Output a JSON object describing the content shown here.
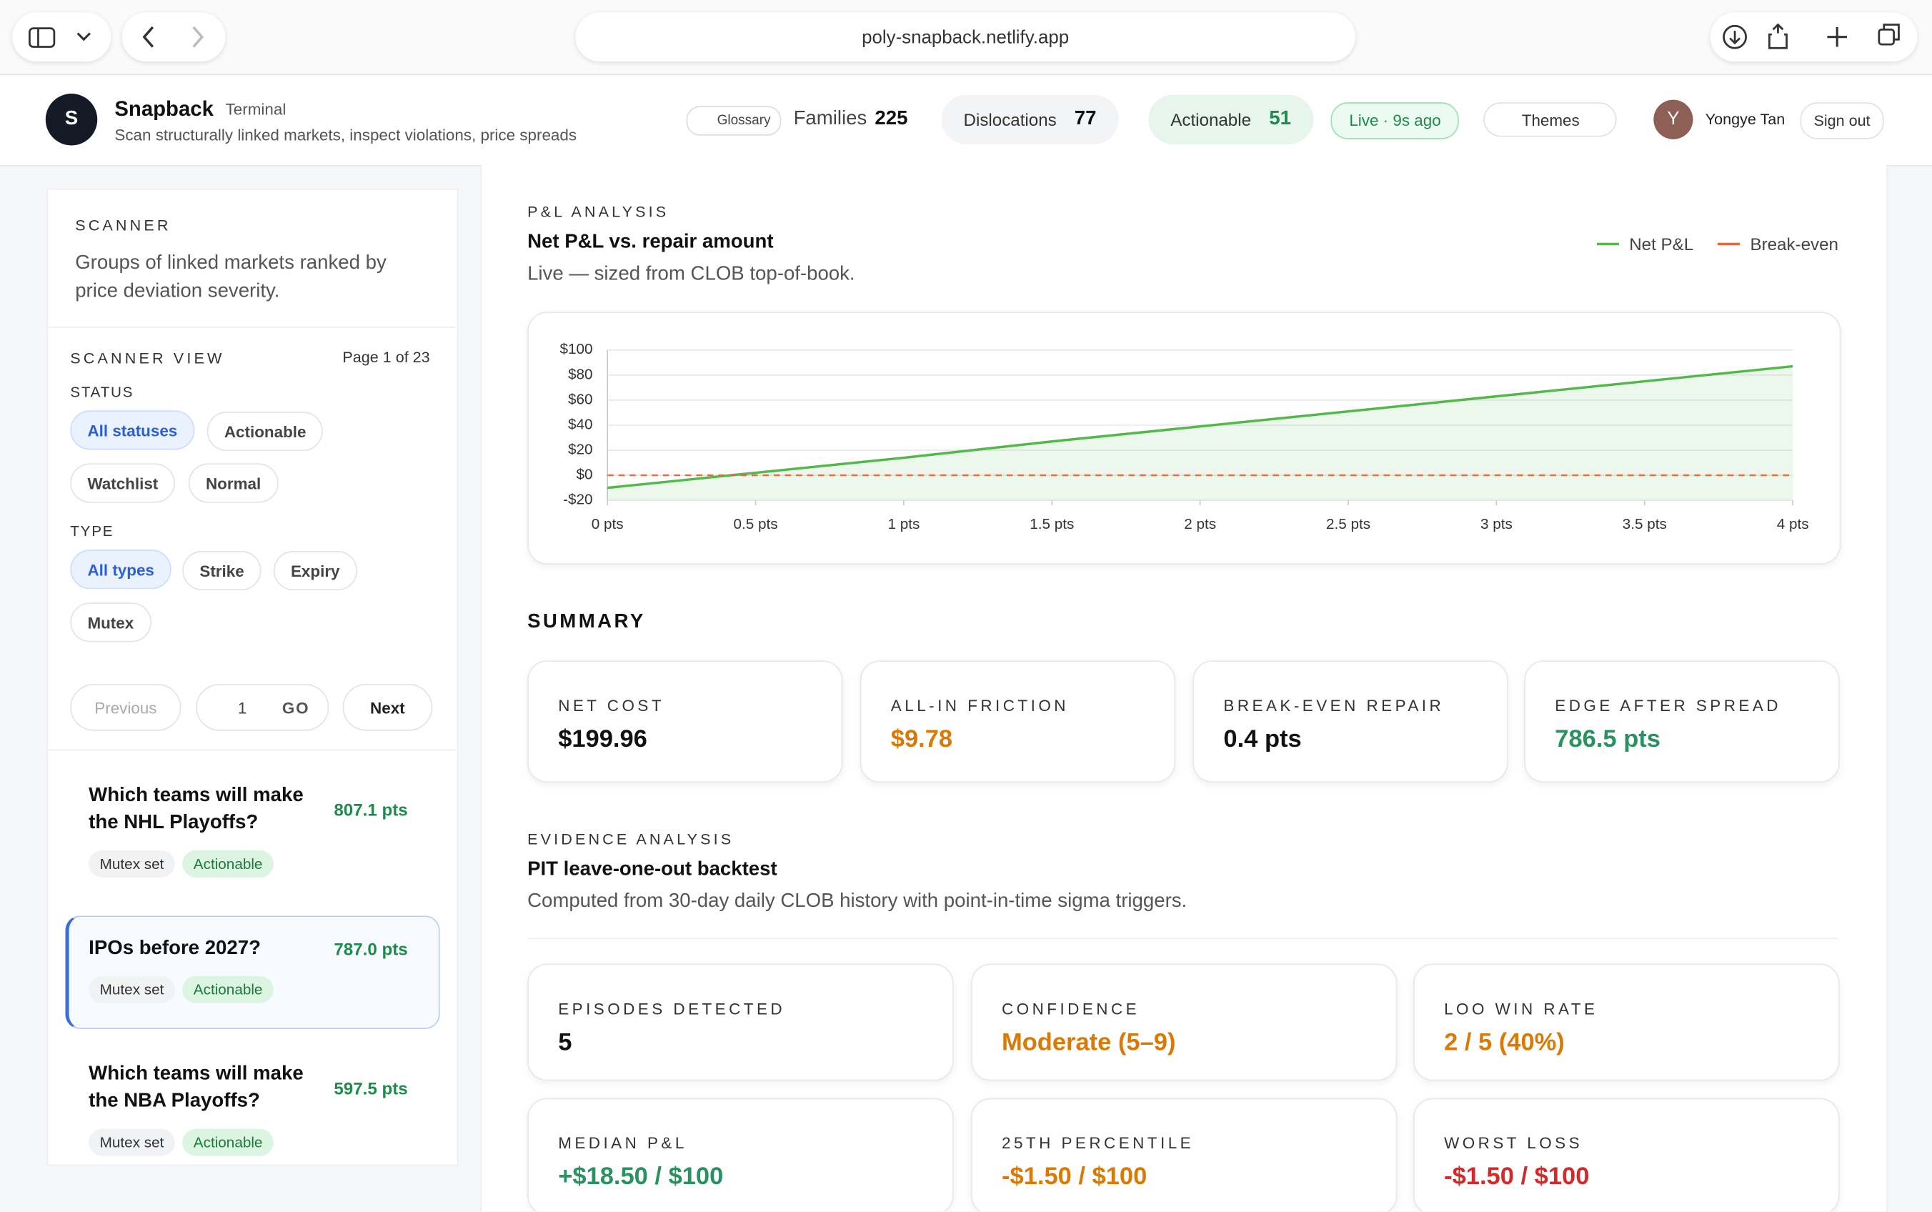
{
  "browser": {
    "url": "poly-snapback.netlify.app"
  },
  "header": {
    "logo": "S",
    "brand": "Snapback",
    "tag": "Terminal",
    "subtitle": "Scan structurally linked markets, inspect violations, price spreads",
    "glossary": "Glossary",
    "families_label": "Families",
    "families": 225,
    "dislocations_label": "Dislocations",
    "dislocations": 77,
    "actionable_label": "Actionable",
    "actionable": 51,
    "live": "Live · 9s ago",
    "themes": "Themes",
    "user_initial": "Y",
    "user": "Yongye Tan",
    "sign_out": "Sign out"
  },
  "sidebar": {
    "title": "SCANNER",
    "description": "Groups of linked markets ranked by price deviation severity.",
    "view_title": "SCANNER VIEW",
    "page_info": "Page 1 of 23",
    "status_label": "STATUS",
    "statuses": [
      "All statuses",
      "Actionable",
      "Watchlist",
      "Normal"
    ],
    "type_label": "TYPE",
    "types": [
      "All types",
      "Strike",
      "Expiry",
      "Mutex"
    ],
    "previous": "Previous",
    "page_input": 1,
    "go": "GO",
    "next": "Next",
    "items": [
      {
        "title": "Which teams will make the NHL Playoffs?",
        "score": "807.1 pts",
        "tags": [
          "Mutex set",
          "Actionable"
        ]
      },
      {
        "title": "IPOs before 2027?",
        "score": "787.0 pts",
        "tags": [
          "Mutex set",
          "Actionable"
        ]
      },
      {
        "title": "Which teams will make the NBA Playoffs?",
        "score": "597.5 pts",
        "tags": [
          "Mutex set",
          "Actionable"
        ]
      }
    ]
  },
  "pnl": {
    "section_label": "P&L ANALYSIS"
  },
  "chart_data": {
    "type": "line",
    "title": "Net P&L vs. repair amount",
    "subtitle": "Live — sized from CLOB top-of-book.",
    "x": [
      0,
      0.5,
      1,
      1.5,
      2,
      2.5,
      3,
      3.5,
      4
    ],
    "series": [
      {
        "name": "Net P&L",
        "color": "#52b84a",
        "values": [
          -10,
          2,
          14,
          27,
          39,
          51,
          63,
          75,
          87
        ]
      },
      {
        "name": "Break-even",
        "color": "#e8663d",
        "dashed": true,
        "values": [
          0,
          0,
          0,
          0,
          0,
          0,
          0,
          0,
          0
        ]
      }
    ],
    "xlim": [
      0,
      4
    ],
    "xticks": [
      {
        "value": 0,
        "label": "0 pts"
      },
      {
        "value": 0.5,
        "label": "0.5 pts"
      },
      {
        "value": 1,
        "label": "1 pts"
      },
      {
        "value": 1.5,
        "label": "1.5 pts"
      },
      {
        "value": 2,
        "label": "2 pts"
      },
      {
        "value": 2.5,
        "label": "2.5 pts"
      },
      {
        "value": 3,
        "label": "3 pts"
      },
      {
        "value": 3.5,
        "label": "3.5 pts"
      },
      {
        "value": 4,
        "label": "4 pts"
      }
    ],
    "ylim": [
      -20,
      100
    ],
    "yticks": [
      {
        "value": 100,
        "label": "$100"
      },
      {
        "value": 80,
        "label": "$80"
      },
      {
        "value": 60,
        "label": "$60"
      },
      {
        "value": 40,
        "label": "$40"
      },
      {
        "value": 20,
        "label": "$20"
      },
      {
        "value": 0,
        "label": "$0"
      },
      {
        "value": -20,
        "label": "-$20"
      }
    ],
    "grid": true,
    "legend": "top-right"
  },
  "summary": {
    "title": "SUMMARY",
    "cards": [
      {
        "label": "NET COST",
        "value": "$199.96"
      },
      {
        "label": "ALL-IN FRICTION",
        "value": "$9.78"
      },
      {
        "label": "BREAK-EVEN REPAIR",
        "value": "0.4 pts"
      },
      {
        "label": "EDGE AFTER SPREAD",
        "value": "786.5 pts"
      }
    ]
  },
  "evidence": {
    "label": "EVIDENCE ANALYSIS",
    "title": "PIT leave-one-out backtest",
    "description": "Computed from 30-day daily CLOB history with point-in-time sigma triggers.",
    "cards": [
      {
        "label": "EPISODES DETECTED",
        "value": "5"
      },
      {
        "label": "CONFIDENCE",
        "value": "Moderate (5–9)"
      },
      {
        "label": "LOO WIN RATE",
        "value": "2 / 5 (40%)"
      },
      {
        "label": "MEDIAN P&L",
        "value": "+$18.50 / $100"
      },
      {
        "label": "25TH PERCENTILE",
        "value": "-$1.50 / $100"
      },
      {
        "label": "WORST LOSS",
        "value": "-$1.50 / $100"
      }
    ]
  }
}
